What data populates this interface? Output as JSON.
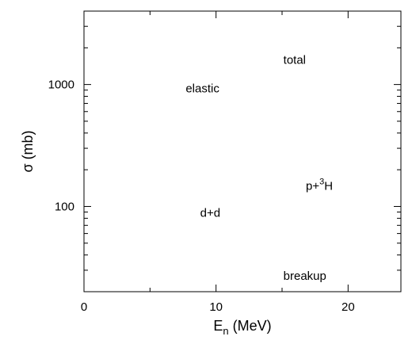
{
  "chart_data": {
    "type": "line",
    "title": "",
    "xlabel": {
      "main": "E",
      "sub": "n",
      "rest": " (MeV)"
    },
    "ylabel": "σ (mb)",
    "x_scale": "linear",
    "y_scale": "log",
    "xlim": [
      0,
      24
    ],
    "ylim": [
      20,
      4000
    ],
    "grid": false,
    "legend": "none",
    "x_ticks": [
      {
        "value": 0,
        "label": "0"
      },
      {
        "value": 10,
        "label": "10"
      },
      {
        "value": 20,
        "label": "20"
      }
    ],
    "x_minor_ticks": [
      5,
      15
    ],
    "y_ticks": [
      {
        "value": 100,
        "label": "100"
      },
      {
        "value": 1000,
        "label": "1000"
      }
    ],
    "y_minor_ticks": [
      20,
      30,
      40,
      50,
      60,
      70,
      80,
      90,
      200,
      300,
      400,
      500,
      600,
      700,
      800,
      900,
      2000,
      3000,
      4000
    ],
    "series": [],
    "annotations": [
      {
        "key": "total",
        "text": "total",
        "x": 15.1,
        "y": 1480
      },
      {
        "key": "elastic",
        "text": "elastic",
        "x": 7.7,
        "y": 860
      },
      {
        "key": "p3h",
        "text": "p+",
        "sup": "3",
        "after": "H",
        "x": 16.8,
        "y": 137
      },
      {
        "key": "dd",
        "text": "d+d",
        "x": 8.8,
        "y": 82
      },
      {
        "key": "breakup",
        "text": "breakup",
        "x": 15.1,
        "y": 25
      }
    ],
    "colors": {
      "axis": "#000000",
      "background": "#ffffff"
    }
  }
}
